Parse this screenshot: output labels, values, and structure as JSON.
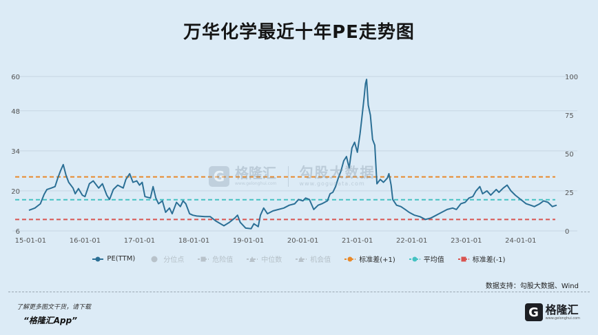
{
  "title": "万华化学最近十年PE走势图",
  "legend": [
    {
      "label": "PE(TTM)",
      "color": "#2b6f95",
      "kind": "line-dot",
      "enabled": true
    },
    {
      "label": "分位点",
      "color": "#b8c2ca",
      "kind": "dot",
      "enabled": false
    },
    {
      "label": "危险值",
      "color": "#b8c2ca",
      "kind": "dash-sq",
      "enabled": false
    },
    {
      "label": "中位数",
      "color": "#b8c2ca",
      "kind": "dash-tri",
      "enabled": false
    },
    {
      "label": "机会值",
      "color": "#b8c2ca",
      "kind": "dash-tri",
      "enabled": false
    },
    {
      "label": "标准差(+1)",
      "color": "#e8892a",
      "kind": "dash-dot",
      "enabled": true
    },
    {
      "label": "平均值",
      "color": "#45c2c2",
      "kind": "dash-dot",
      "enabled": true
    },
    {
      "label": "标准差(-1)",
      "color": "#d9534f",
      "kind": "dash-sq",
      "enabled": true
    }
  ],
  "source": "数据支持：勾股大数据、Wind",
  "footer": {
    "promo": "了解更多图文干货，请下载",
    "app": "“格隆汇App”",
    "brand_name": "格隆汇",
    "brand_url": "www.gelonghui.com",
    "brand_icon": "G"
  },
  "watermark": {
    "icon": "G",
    "name": "格隆汇",
    "url": "www.gelonghui.com",
    "name2": "勾股大数据",
    "url2": "www.gogudata.com"
  },
  "chart_data": {
    "type": "line",
    "y_left": {
      "ticks": [
        6,
        20,
        34,
        48,
        60
      ],
      "range": [
        6,
        60
      ]
    },
    "y_right": {
      "ticks": [
        0,
        25,
        50,
        75,
        100
      ],
      "range": [
        0,
        100
      ]
    },
    "grid": "horizontal",
    "x_ticks": [
      {
        "label": "15-01-01",
        "x": 2015.0
      },
      {
        "label": "16-01-01",
        "x": 2016.0
      },
      {
        "label": "17-01-01",
        "x": 2017.0
      },
      {
        "label": "18-01-01",
        "x": 2018.0
      },
      {
        "label": "19-01-01",
        "x": 2019.0
      },
      {
        "label": "20-01-01",
        "x": 2020.0
      },
      {
        "label": "21-01-01",
        "x": 2021.0
      },
      {
        "label": "22-01-01",
        "x": 2022.0
      },
      {
        "label": "23-01-01",
        "x": 2023.0
      },
      {
        "label": "24-01-01",
        "x": 2024.0
      }
    ],
    "x_range": [
      2014.97,
      2024.66
    ],
    "reference_lines": [
      {
        "name": "标准差(+1)",
        "value": 24.9,
        "color": "#e8892a"
      },
      {
        "name": "平均值",
        "value": 16.9,
        "color": "#45c2c2"
      },
      {
        "name": "标准差(-1)",
        "value": 10.0,
        "color": "#d9534f"
      }
    ],
    "series": [
      {
        "name": "PE(TTM)",
        "color": "#2b6f95",
        "points": [
          [
            2014.97,
            13.2
          ],
          [
            2015.08,
            14.0
          ],
          [
            2015.18,
            15.5
          ],
          [
            2015.25,
            18.8
          ],
          [
            2015.3,
            20.5
          ],
          [
            2015.38,
            21.0
          ],
          [
            2015.45,
            21.5
          ],
          [
            2015.5,
            24.5
          ],
          [
            2015.55,
            27.0
          ],
          [
            2015.6,
            29.2
          ],
          [
            2015.65,
            25.5
          ],
          [
            2015.7,
            23.0
          ],
          [
            2015.78,
            21.0
          ],
          [
            2015.82,
            19.0
          ],
          [
            2015.88,
            20.8
          ],
          [
            2015.95,
            18.5
          ],
          [
            2016.0,
            18.0
          ],
          [
            2016.08,
            22.5
          ],
          [
            2016.15,
            23.5
          ],
          [
            2016.25,
            21.0
          ],
          [
            2016.32,
            22.5
          ],
          [
            2016.4,
            18.5
          ],
          [
            2016.45,
            17.0
          ],
          [
            2016.52,
            20.5
          ],
          [
            2016.6,
            22.0
          ],
          [
            2016.7,
            21.0
          ],
          [
            2016.75,
            24.0
          ],
          [
            2016.82,
            26.0
          ],
          [
            2016.88,
            23.0
          ],
          [
            2016.95,
            23.5
          ],
          [
            2017.0,
            22.0
          ],
          [
            2017.05,
            23.0
          ],
          [
            2017.1,
            18.0
          ],
          [
            2017.2,
            17.5
          ],
          [
            2017.25,
            21.5
          ],
          [
            2017.3,
            17.5
          ],
          [
            2017.35,
            15.5
          ],
          [
            2017.42,
            16.5
          ],
          [
            2017.48,
            12.5
          ],
          [
            2017.55,
            14.0
          ],
          [
            2017.6,
            12.0
          ],
          [
            2017.68,
            16.0
          ],
          [
            2017.75,
            14.5
          ],
          [
            2017.8,
            16.5
          ],
          [
            2017.85,
            15.5
          ],
          [
            2017.92,
            12.0
          ],
          [
            2017.98,
            11.5
          ],
          [
            2018.05,
            11.2
          ],
          [
            2018.2,
            11.0
          ],
          [
            2018.3,
            11.0
          ],
          [
            2018.4,
            9.5
          ],
          [
            2018.55,
            7.8
          ],
          [
            2018.65,
            9.0
          ],
          [
            2018.75,
            10.5
          ],
          [
            2018.8,
            11.5
          ],
          [
            2018.85,
            9.0
          ],
          [
            2018.95,
            7.0
          ],
          [
            2019.05,
            6.8
          ],
          [
            2019.1,
            8.5
          ],
          [
            2019.18,
            7.5
          ],
          [
            2019.22,
            11.5
          ],
          [
            2019.28,
            14.0
          ],
          [
            2019.35,
            12.0
          ],
          [
            2019.45,
            13.0
          ],
          [
            2019.55,
            13.5
          ],
          [
            2019.65,
            14.0
          ],
          [
            2019.75,
            15.0
          ],
          [
            2019.85,
            15.5
          ],
          [
            2019.92,
            17.0
          ],
          [
            2020.0,
            16.5
          ],
          [
            2020.05,
            17.5
          ],
          [
            2020.12,
            17.0
          ],
          [
            2020.2,
            13.5
          ],
          [
            2020.28,
            15.0
          ],
          [
            2020.35,
            15.5
          ],
          [
            2020.45,
            16.5
          ],
          [
            2020.5,
            19.0
          ],
          [
            2020.55,
            19.5
          ],
          [
            2020.6,
            21.5
          ],
          [
            2020.65,
            24.5
          ],
          [
            2020.7,
            27.0
          ],
          [
            2020.75,
            30.5
          ],
          [
            2020.8,
            32.0
          ],
          [
            2020.85,
            28.0
          ],
          [
            2020.9,
            35.0
          ],
          [
            2020.95,
            37.0
          ],
          [
            2021.0,
            33.5
          ],
          [
            2021.05,
            40.0
          ],
          [
            2021.08,
            45.0
          ],
          [
            2021.12,
            52.0
          ],
          [
            2021.15,
            57.5
          ],
          [
            2021.17,
            59.0
          ],
          [
            2021.2,
            50.0
          ],
          [
            2021.24,
            46.5
          ],
          [
            2021.28,
            38.0
          ],
          [
            2021.32,
            36.0
          ],
          [
            2021.36,
            22.5
          ],
          [
            2021.42,
            24.0
          ],
          [
            2021.48,
            23.0
          ],
          [
            2021.55,
            24.5
          ],
          [
            2021.58,
            26.0
          ],
          [
            2021.62,
            22.0
          ],
          [
            2021.65,
            17.0
          ],
          [
            2021.72,
            15.0
          ],
          [
            2021.8,
            14.5
          ],
          [
            2021.88,
            13.5
          ],
          [
            2021.95,
            12.5
          ],
          [
            2022.05,
            11.5
          ],
          [
            2022.15,
            11.0
          ],
          [
            2022.25,
            10.0
          ],
          [
            2022.35,
            10.5
          ],
          [
            2022.45,
            11.5
          ],
          [
            2022.55,
            12.5
          ],
          [
            2022.65,
            13.5
          ],
          [
            2022.75,
            14.0
          ],
          [
            2022.82,
            13.5
          ],
          [
            2022.9,
            15.5
          ],
          [
            2022.98,
            16.0
          ],
          [
            2023.05,
            17.5
          ],
          [
            2023.12,
            18.0
          ],
          [
            2023.18,
            20.0
          ],
          [
            2023.25,
            21.5
          ],
          [
            2023.3,
            19.0
          ],
          [
            2023.38,
            20.0
          ],
          [
            2023.45,
            18.5
          ],
          [
            2023.55,
            20.5
          ],
          [
            2023.6,
            19.5
          ],
          [
            2023.68,
            21.0
          ],
          [
            2023.75,
            22.0
          ],
          [
            2023.82,
            20.0
          ],
          [
            2023.9,
            18.5
          ],
          [
            2024.0,
            17.0
          ],
          [
            2024.1,
            15.5
          ],
          [
            2024.18,
            15.0
          ],
          [
            2024.25,
            14.5
          ],
          [
            2024.35,
            15.5
          ],
          [
            2024.42,
            16.5
          ],
          [
            2024.5,
            16.0
          ],
          [
            2024.58,
            14.5
          ],
          [
            2024.66,
            15.0
          ]
        ]
      }
    ]
  }
}
